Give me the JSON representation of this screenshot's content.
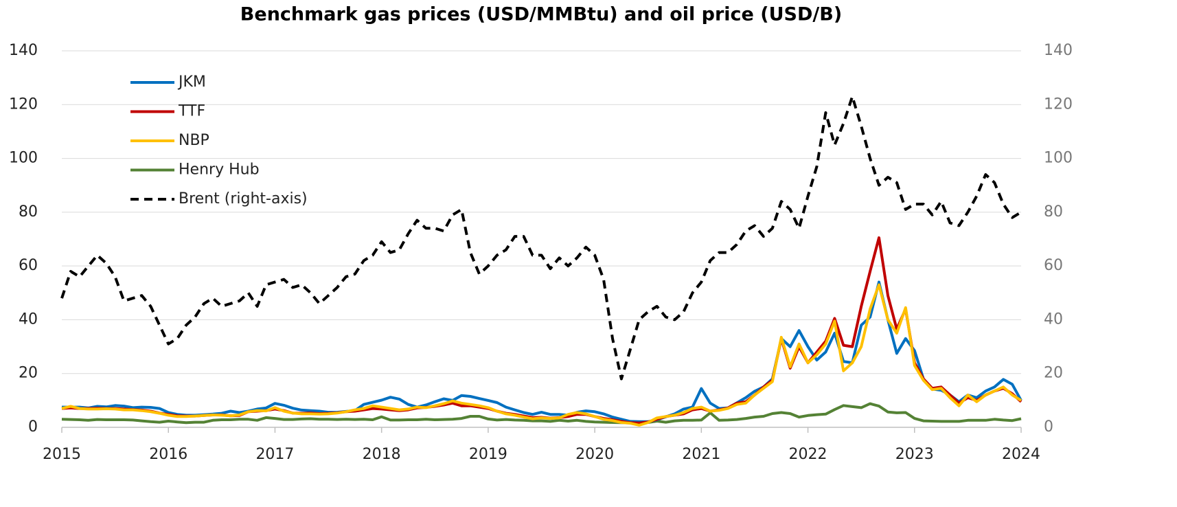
{
  "chart_data": {
    "type": "line",
    "title": "Benchmark gas prices (USD/MMBtu) and oil price (USD/B)",
    "categories": [
      "2015",
      null,
      null,
      null,
      null,
      null,
      null,
      null,
      null,
      null,
      null,
      null,
      "2016",
      null,
      null,
      null,
      null,
      null,
      null,
      null,
      null,
      null,
      null,
      null,
      "2017",
      null,
      null,
      null,
      null,
      null,
      null,
      null,
      null,
      null,
      null,
      null,
      "2018",
      null,
      null,
      null,
      null,
      null,
      null,
      null,
      null,
      null,
      null,
      null,
      "2019",
      null,
      null,
      null,
      null,
      null,
      null,
      null,
      null,
      null,
      null,
      null,
      "2020",
      null,
      null,
      null,
      null,
      null,
      null,
      null,
      null,
      null,
      null,
      null,
      "2021",
      null,
      null,
      null,
      null,
      null,
      null,
      null,
      null,
      null,
      null,
      null,
      "2022",
      null,
      null,
      null,
      null,
      null,
      null,
      null,
      null,
      null,
      null,
      null,
      "2023",
      null,
      null,
      null,
      null,
      null,
      null,
      null,
      null,
      null,
      null,
      null,
      "2024"
    ],
    "series": [
      {
        "name": "JKM",
        "color": "#0070c0",
        "values": [
          7.5,
          7.5,
          7.5,
          7.2,
          7.8,
          7.6,
          8.1,
          7.9,
          7.3,
          7.5,
          7.4,
          7.0,
          5.5,
          4.8,
          4.5,
          4.5,
          4.7,
          4.9,
          5.2,
          6.0,
          5.5,
          6.0,
          6.8,
          7.2,
          8.9,
          8.2,
          7.1,
          6.4,
          6.2,
          6.0,
          5.6,
          5.6,
          5.9,
          6.2,
          8.5,
          9.3,
          10.1,
          11.2,
          10.5,
          8.5,
          7.5,
          8.3,
          9.5,
          10.6,
          10.0,
          11.8,
          11.5,
          10.7,
          10.0,
          9.2,
          7.5,
          6.5,
          5.5,
          4.8,
          5.6,
          4.8,
          4.8,
          4.5,
          5.6,
          6.1,
          5.8,
          5.0,
          3.8,
          3.0,
          2.2,
          2.1,
          2.1,
          2.8,
          3.9,
          5.0,
          6.8,
          7.5,
          14.4,
          9.0,
          7.0,
          7.2,
          9.1,
          11.0,
          13.4,
          15.0,
          18.0,
          33.0,
          30.0,
          36.0,
          30.0,
          25.0,
          28.0,
          35.0,
          24.5,
          24.0,
          38.0,
          41.0,
          54.0,
          40.0,
          27.5,
          33.0,
          28.5,
          18.0,
          14.2,
          13.8,
          12.0,
          9.5,
          12.0,
          11.0,
          13.5,
          15.0,
          17.8,
          16.0,
          10.0
        ]
      },
      {
        "name": "TTF",
        "color": "#c00000",
        "values": [
          7.0,
          7.2,
          7.0,
          7.0,
          7.1,
          7.0,
          7.0,
          6.8,
          6.6,
          6.4,
          6.0,
          5.3,
          4.8,
          4.3,
          4.2,
          4.2,
          4.4,
          4.6,
          4.6,
          4.3,
          4.4,
          5.8,
          6.0,
          6.2,
          6.8,
          6.2,
          5.3,
          5.2,
          5.3,
          5.1,
          5.2,
          5.4,
          5.8,
          6.0,
          6.5,
          7.0,
          6.8,
          6.5,
          6.2,
          6.5,
          7.2,
          7.4,
          7.8,
          8.3,
          9.0,
          8.0,
          8.0,
          7.5,
          7.0,
          6.0,
          5.2,
          4.8,
          4.2,
          3.6,
          3.7,
          3.4,
          3.6,
          4.0,
          4.8,
          4.8,
          4.0,
          3.3,
          2.8,
          2.2,
          1.7,
          1.6,
          2.0,
          3.0,
          4.0,
          4.5,
          5.0,
          6.5,
          7.0,
          6.0,
          6.5,
          7.2,
          9.0,
          9.5,
          12.0,
          15.0,
          17.5,
          33.0,
          22.0,
          30.0,
          24.0,
          28.0,
          32.0,
          40.5,
          30.5,
          30.0,
          45.0,
          58.0,
          70.5,
          49.0,
          36.5,
          44.0,
          24.0,
          18.0,
          14.5,
          15.0,
          12.0,
          9.0,
          11.0,
          10.0,
          12.0,
          13.5,
          14.5,
          12.5,
          9.5
        ]
      },
      {
        "name": "NBP",
        "color": "#ffc000",
        "values": [
          7.0,
          7.8,
          7.0,
          6.8,
          6.8,
          6.9,
          6.8,
          6.5,
          6.5,
          6.2,
          5.8,
          5.2,
          4.5,
          4.0,
          4.0,
          4.2,
          4.4,
          4.6,
          4.5,
          4.3,
          4.6,
          5.8,
          6.2,
          6.1,
          7.3,
          6.0,
          5.3,
          5.0,
          5.0,
          4.9,
          5.0,
          5.3,
          5.8,
          6.5,
          7.0,
          8.0,
          7.5,
          7.0,
          6.5,
          6.8,
          7.5,
          7.3,
          8.0,
          8.8,
          9.8,
          9.0,
          8.5,
          8.0,
          7.3,
          6.0,
          5.0,
          4.5,
          3.8,
          3.2,
          3.5,
          3.3,
          3.5,
          4.8,
          5.5,
          5.0,
          4.0,
          3.0,
          2.5,
          1.8,
          1.5,
          0.8,
          1.8,
          3.5,
          4.0,
          4.5,
          5.5,
          7.0,
          7.5,
          6.0,
          6.3,
          7.0,
          8.5,
          9.0,
          12.0,
          14.5,
          17.0,
          33.5,
          22.5,
          31.0,
          24.0,
          27.0,
          31.0,
          39.5,
          21.0,
          24.0,
          30.0,
          44.0,
          53.0,
          40.0,
          35.0,
          44.5,
          23.0,
          17.5,
          14.0,
          14.5,
          11.0,
          8.0,
          12.0,
          9.5,
          12.0,
          13.5,
          15.0,
          12.0,
          10.0
        ]
      },
      {
        "name": "Henry Hub",
        "color": "#548235",
        "values": [
          3.0,
          2.9,
          2.8,
          2.6,
          2.9,
          2.8,
          2.8,
          2.8,
          2.7,
          2.4,
          2.1,
          1.9,
          2.3,
          2.0,
          1.7,
          1.9,
          1.9,
          2.6,
          2.8,
          2.8,
          3.0,
          3.0,
          2.6,
          3.6,
          3.3,
          2.9,
          2.9,
          3.1,
          3.2,
          3.0,
          3.0,
          2.9,
          3.0,
          2.9,
          3.0,
          2.8,
          3.9,
          2.7,
          2.7,
          2.8,
          2.8,
          3.0,
          2.8,
          2.9,
          3.0,
          3.3,
          4.1,
          4.1,
          3.1,
          2.7,
          2.9,
          2.7,
          2.6,
          2.4,
          2.4,
          2.2,
          2.6,
          2.3,
          2.6,
          2.2,
          2.0,
          1.9,
          1.8,
          1.7,
          1.8,
          1.6,
          1.8,
          2.3,
          1.9,
          2.4,
          2.6,
          2.6,
          2.7,
          5.4,
          2.6,
          2.7,
          2.9,
          3.3,
          3.8,
          4.1,
          5.1,
          5.5,
          5.1,
          3.8,
          4.4,
          4.7,
          4.9,
          6.6,
          8.1,
          7.7,
          7.3,
          8.8,
          7.9,
          5.7,
          5.4,
          5.5,
          3.3,
          2.4,
          2.3,
          2.2,
          2.2,
          2.2,
          2.6,
          2.6,
          2.6,
          3.0,
          2.7,
          2.5,
          3.2
        ]
      },
      {
        "name": "Brent (right-axis)",
        "color": "#000000",
        "linestyle": "dashed",
        "axis": "y2",
        "values": [
          48,
          58,
          56,
          60,
          64,
          61,
          56,
          47,
          48,
          49,
          45,
          38,
          31,
          33,
          38,
          41,
          46,
          48,
          45,
          46,
          47,
          50,
          45,
          53,
          54,
          55,
          52,
          53,
          50,
          46,
          49,
          52,
          56,
          57,
          62,
          64,
          69,
          65,
          66,
          72,
          77,
          74,
          74,
          73,
          79,
          81,
          65,
          57,
          60,
          64,
          66,
          71,
          71,
          64,
          64,
          59,
          63,
          60,
          63,
          67,
          64,
          55,
          33,
          18,
          29,
          40,
          43,
          45,
          41,
          40,
          43,
          50,
          54,
          62,
          65,
          65,
          68,
          73,
          75,
          71,
          74,
          84,
          81,
          74,
          86,
          97,
          117,
          105,
          113,
          123,
          112,
          100,
          90,
          93,
          91,
          81,
          83,
          83,
          79,
          84,
          76,
          75,
          80,
          86,
          94,
          91,
          83,
          78,
          80
        ]
      }
    ],
    "ylim": [
      0,
      140
    ],
    "yticks": [
      0,
      20,
      40,
      60,
      80,
      100,
      120,
      140
    ],
    "y2lim": [
      0,
      140
    ],
    "y2ticks": [
      0,
      20,
      40,
      60,
      80,
      100,
      120,
      140
    ],
    "grid": true,
    "legend": "upper left"
  }
}
